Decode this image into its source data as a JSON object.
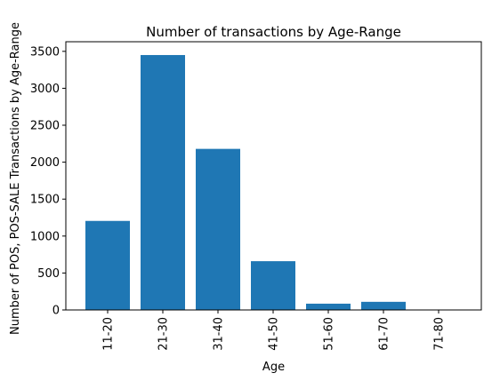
{
  "chart_data": {
    "type": "bar",
    "title": "Number of transactions by Age-Range",
    "xlabel": "Age",
    "ylabel": "Number of POS, POS-SALE Transactions by Age-Range",
    "categories": [
      "11-20",
      "21-30",
      "31-40",
      "41-50",
      "51-60",
      "61-70",
      "71-80"
    ],
    "values": [
      1205,
      3450,
      2180,
      660,
      85,
      110,
      5
    ],
    "ylim": [
      0,
      3630
    ],
    "yticks": [
      0,
      500,
      1000,
      1500,
      2000,
      2500,
      3000,
      3500
    ],
    "ytick_labels": [
      "0",
      "500",
      "1000",
      "1500",
      "2000",
      "2500",
      "3000",
      "3500"
    ],
    "bar_color": "#1f77b4",
    "grid": false,
    "legend": "none"
  }
}
